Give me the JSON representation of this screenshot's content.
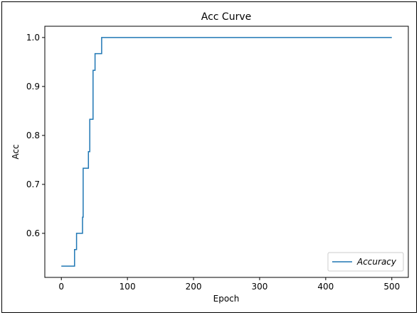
{
  "chart_data": {
    "type": "line",
    "title": "Acc Curve",
    "xlabel": "Epoch",
    "ylabel": "Acc",
    "xlim": [
      -25,
      525
    ],
    "ylim": [
      0.51,
      1.023
    ],
    "xticks": [
      0,
      100,
      200,
      300,
      400,
      500
    ],
    "yticks": [
      0.6,
      0.7,
      0.8,
      0.9,
      1.0
    ],
    "xtick_labels": [
      "0",
      "100",
      "200",
      "300",
      "400",
      "500"
    ],
    "ytick_labels": [
      "0.6",
      "0.7",
      "0.8",
      "0.9",
      "1.0"
    ],
    "grid": false,
    "legend_position": "bottom-right",
    "series": [
      {
        "name": "Accuracy",
        "color": "#1f77b4",
        "x": [
          0,
          20,
          20,
          23,
          23,
          27,
          27,
          32,
          32,
          33,
          33,
          36,
          36,
          41,
          41,
          43,
          43,
          46,
          46,
          48,
          48,
          51,
          51,
          55,
          55,
          61,
          61,
          500
        ],
        "y": [
          0.533,
          0.533,
          0.567,
          0.567,
          0.6,
          0.6,
          0.6,
          0.6,
          0.633,
          0.633,
          0.733,
          0.733,
          0.733,
          0.733,
          0.767,
          0.767,
          0.833,
          0.833,
          0.833,
          0.833,
          0.933,
          0.933,
          0.967,
          0.967,
          0.967,
          0.967,
          1.0,
          1.0
        ]
      }
    ]
  }
}
